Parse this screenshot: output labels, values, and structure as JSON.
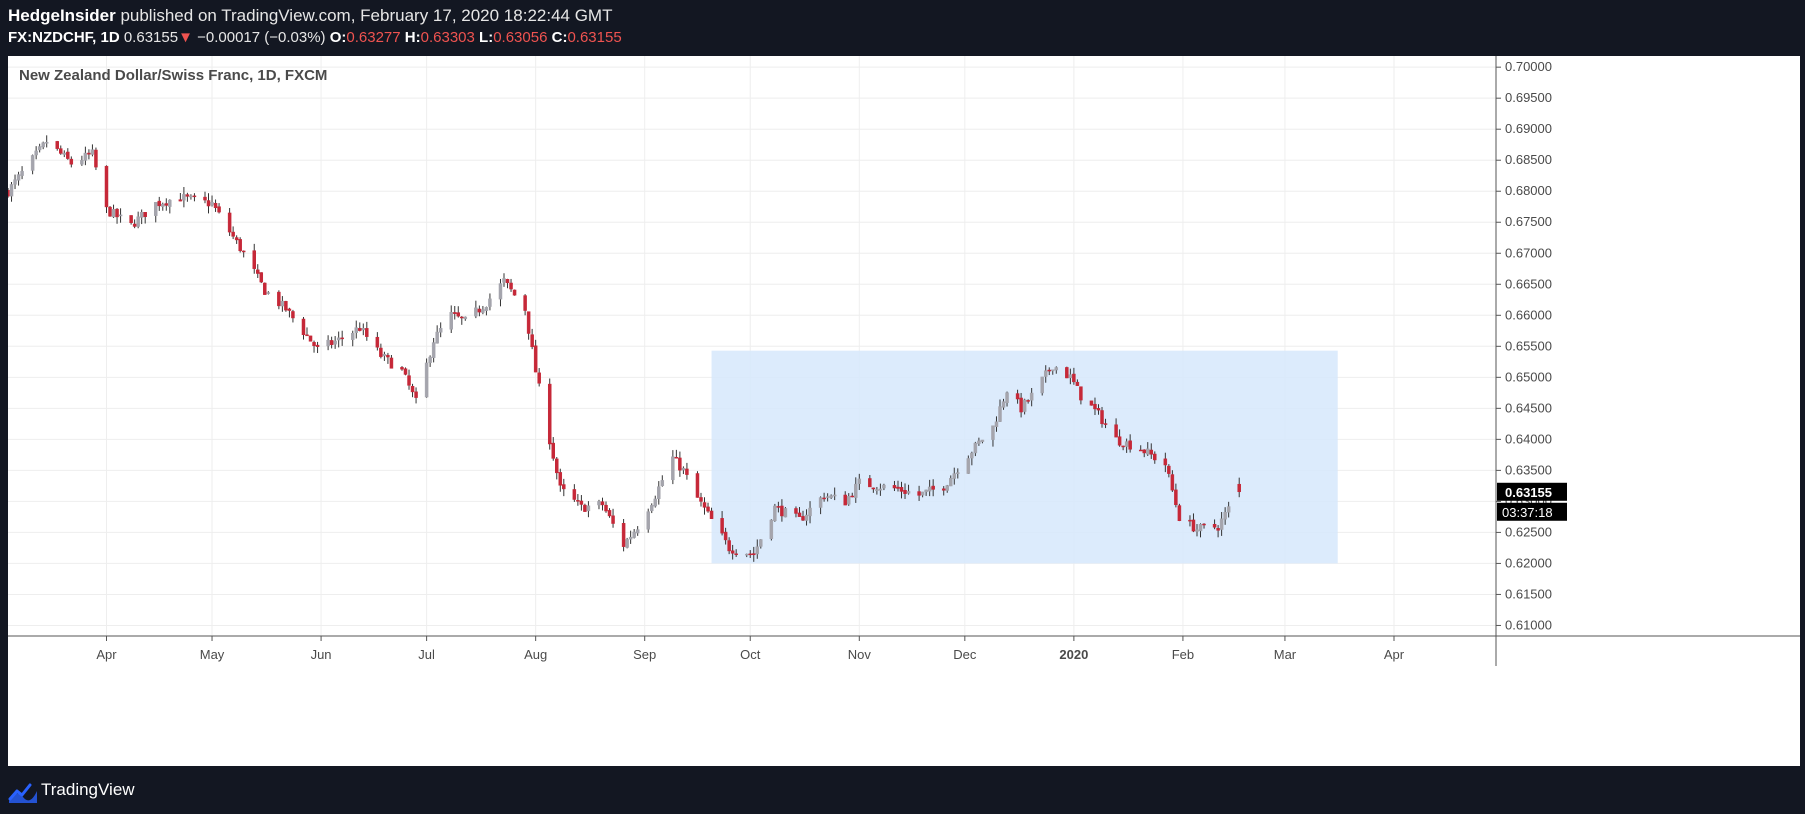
{
  "header": {
    "publisher": "HedgeInsider",
    "published_text": "published on TradingView.com, February 17, 2020 18:22:44 GMT",
    "symbol": "FX:NZDCHF, 1D",
    "last": "0.63155",
    "change_arrow": "▼",
    "change": "−0.00017 (−0.03%)",
    "open_label": "O:",
    "open": "0.63277",
    "high_label": "H:",
    "high": "0.63303",
    "low_label": "L:",
    "low": "0.63056",
    "close_label": "C:",
    "close": "0.63155"
  },
  "footer": {
    "brand": "TradingView",
    "logo_icon": "tradingview-logo-icon"
  },
  "chart_data": {
    "type": "candlestick",
    "title": "New Zealand Dollar/Swiss Franc, 1D, FXCM",
    "x_axis": {
      "ticks": [
        {
          "label": "Apr",
          "date": "2019-04-01"
        },
        {
          "label": "May",
          "date": "2019-05-01"
        },
        {
          "label": "Jun",
          "date": "2019-06-01"
        },
        {
          "label": "Jul",
          "date": "2019-07-01"
        },
        {
          "label": "Aug",
          "date": "2019-08-01"
        },
        {
          "label": "Sep",
          "date": "2019-09-01"
        },
        {
          "label": "Oct",
          "date": "2019-10-01"
        },
        {
          "label": "Nov",
          "date": "2019-11-01"
        },
        {
          "label": "Dec",
          "date": "2019-12-01"
        },
        {
          "label": "2020",
          "date": "2020-01-01",
          "bold": true
        },
        {
          "label": "Feb",
          "date": "2020-02-01"
        },
        {
          "label": "Mar",
          "date": "2020-03-01"
        },
        {
          "label": "Apr",
          "date": "2020-04-01"
        }
      ],
      "range": [
        "2019-03-04",
        "2020-04-30"
      ]
    },
    "y_axis": {
      "ticks": [
        "0.70000",
        "0.69500",
        "0.69000",
        "0.68500",
        "0.68000",
        "0.67500",
        "0.67000",
        "0.66500",
        "0.66000",
        "0.65500",
        "0.65000",
        "0.64500",
        "0.64000",
        "0.63500",
        "0.63000",
        "0.62500",
        "0.62000",
        "0.61500",
        "0.61000"
      ],
      "range": [
        0.6083,
        0.7018
      ]
    },
    "price_label": "0.63155",
    "countdown": "03:37:18",
    "grid": true,
    "colors": {
      "up": "#a5a5ad",
      "down": "#c62838",
      "zone_fill": "#d6e8fb",
      "grid": "#eeeeee",
      "price_label_bg": "#000000"
    },
    "zone": {
      "start": "2019-09-20",
      "end": "2020-03-16",
      "high": 0.6543,
      "low": 0.62
    },
    "anchors": [
      [
        "2019-03-04",
        0.68
      ],
      [
        "2019-03-15",
        0.688
      ],
      [
        "2019-03-22",
        0.6845
      ],
      [
        "2019-03-28",
        0.686
      ],
      [
        "2019-04-01",
        0.677
      ],
      [
        "2019-04-08",
        0.6745
      ],
      [
        "2019-04-15",
        0.678
      ],
      [
        "2019-04-22",
        0.679
      ],
      [
        "2019-04-26",
        0.6785
      ],
      [
        "2019-05-01",
        0.678
      ],
      [
        "2019-05-06",
        0.6735
      ],
      [
        "2019-05-10",
        0.67
      ],
      [
        "2019-05-16",
        0.664
      ],
      [
        "2019-05-22",
        0.661
      ],
      [
        "2019-05-31",
        0.6545
      ],
      [
        "2019-06-06",
        0.656
      ],
      [
        "2019-06-12",
        0.658
      ],
      [
        "2019-06-18",
        0.6535
      ],
      [
        "2019-06-24",
        0.651
      ],
      [
        "2019-06-28",
        0.646
      ],
      [
        "2019-07-03",
        0.656
      ],
      [
        "2019-07-08",
        0.66
      ],
      [
        "2019-07-12",
        0.659
      ],
      [
        "2019-07-18",
        0.662
      ],
      [
        "2019-07-23",
        0.6655
      ],
      [
        "2019-07-29",
        0.661
      ],
      [
        "2019-08-01",
        0.651
      ],
      [
        "2019-08-05",
        0.64
      ],
      [
        "2019-08-08",
        0.632
      ],
      [
        "2019-08-14",
        0.629
      ],
      [
        "2019-08-20",
        0.6295
      ],
      [
        "2019-08-26",
        0.623
      ],
      [
        "2019-08-30",
        0.626
      ],
      [
        "2019-09-04",
        0.631
      ],
      [
        "2019-09-09",
        0.637
      ],
      [
        "2019-09-12",
        0.635
      ],
      [
        "2019-09-16",
        0.6305
      ],
      [
        "2019-09-20",
        0.627
      ],
      [
        "2019-09-25",
        0.6225
      ],
      [
        "2019-10-02",
        0.6215
      ],
      [
        "2019-10-08",
        0.629
      ],
      [
        "2019-10-15",
        0.627
      ],
      [
        "2019-10-22",
        0.631
      ],
      [
        "2019-10-28",
        0.63
      ],
      [
        "2019-11-01",
        0.633
      ],
      [
        "2019-11-06",
        0.6325
      ],
      [
        "2019-11-12",
        0.632
      ],
      [
        "2019-11-18",
        0.631
      ],
      [
        "2019-11-25",
        0.6325
      ],
      [
        "2019-12-02",
        0.6375
      ],
      [
        "2019-12-09",
        0.642
      ],
      [
        "2019-12-13",
        0.648
      ],
      [
        "2019-12-17",
        0.645
      ],
      [
        "2019-12-20",
        0.647
      ],
      [
        "2019-12-26",
        0.652
      ],
      [
        "2019-12-31",
        0.65
      ],
      [
        "2020-01-03",
        0.647
      ],
      [
        "2020-01-08",
        0.644
      ],
      [
        "2020-01-13",
        0.64
      ],
      [
        "2020-01-20",
        0.6385
      ],
      [
        "2020-01-27",
        0.636
      ],
      [
        "2020-01-31",
        0.6275
      ],
      [
        "2020-02-05",
        0.6255
      ],
      [
        "2020-02-11",
        0.626
      ],
      [
        "2020-02-17",
        0.6316
      ]
    ]
  }
}
